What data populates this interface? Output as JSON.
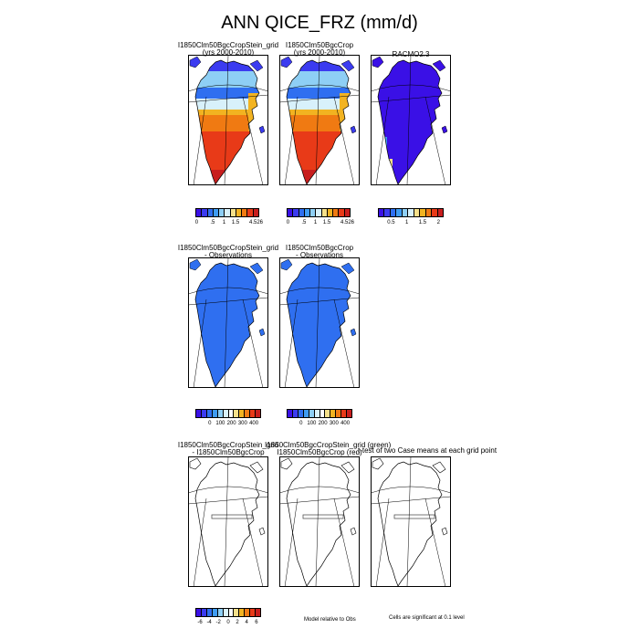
{
  "figure": {
    "title": "ANN QICE_FRZ (mm/d)"
  },
  "row1": {
    "p1": {
      "title1": "I1850Clm50BgcCropStein_grid",
      "title2": "(yrs 2000-2010)"
    },
    "p2": {
      "title1": "I1850Clm50BgcCrop",
      "title2": "(yrs 2000-2010)"
    },
    "p3": {
      "title1": "RACMO2.3"
    },
    "cbar12_ticks": [
      "0",
      ".5",
      "1",
      "1.5",
      "4.526"
    ],
    "cbar3_ticks": [
      "0.5",
      "1",
      "1.5",
      "2"
    ]
  },
  "row2": {
    "p1": {
      "title1": "I1850Clm50BgcCropStein_grid",
      "title2": "- Observations"
    },
    "p2": {
      "title1": "I1850Clm50BgcCrop",
      "title2": "- Observations"
    },
    "cbar_ticks": [
      "0",
      "100",
      "200",
      "300",
      "400"
    ]
  },
  "row3": {
    "p1": {
      "title1": "I1850Clm50BgcCropStein_grid",
      "title2": "- I1850Clm50BgcCrop"
    },
    "p2": {
      "title1": "I1850Clm50BgcCropStein_grid (green)",
      "title2": "I1850Clm50BgcCrop (red)"
    },
    "p3": {
      "title1": "t-test of two Case means at each grid point"
    },
    "cbar_ticks": [
      "-6",
      "-4",
      "-2",
      "0",
      "2",
      "4",
      "6"
    ],
    "note_model": "Model relative to Obs",
    "note_cells": "Cells are significant at 0.1 level"
  },
  "colors": {
    "scale_abs": [
      "#3a10e6",
      "#3b3bf0",
      "#2f6ff0",
      "#3f9cf2",
      "#8ecff5",
      "#d8f1fb",
      "#f6e08a",
      "#f2b321",
      "#f07a12",
      "#e83a18",
      "#c81e1e"
    ],
    "scale_diff": [
      "#3a10e6",
      "#3b3bf0",
      "#2f6ff0",
      "#3f9cf2",
      "#8ecff5",
      "#d8f1fb",
      "#ffffff",
      "#f6e08a",
      "#f2b321",
      "#f07a12",
      "#e83a18",
      "#c81e1e"
    ],
    "racmo_fill": "#3a10e6",
    "obs_fill": "#2f6ff0"
  }
}
